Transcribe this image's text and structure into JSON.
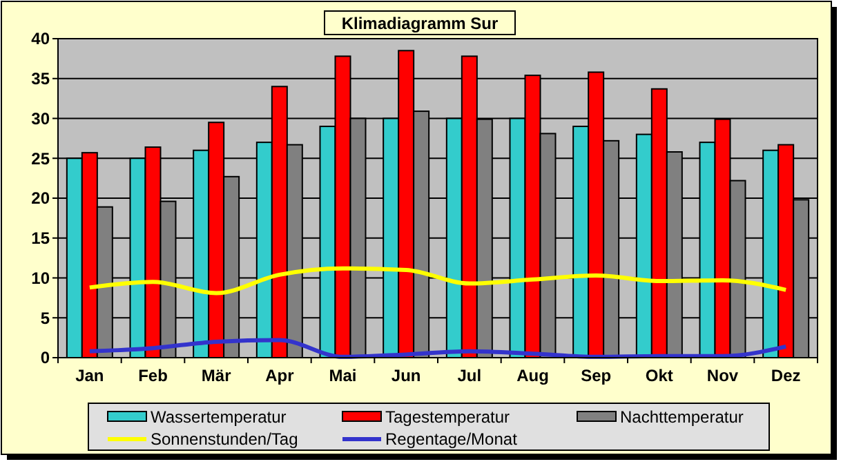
{
  "chart_data": {
    "type": "bar",
    "title": "Klimadiagramm Sur",
    "categories": [
      "Jan",
      "Feb",
      "Mär",
      "Apr",
      "Mai",
      "Jun",
      "Jul",
      "Aug",
      "Sep",
      "Okt",
      "Nov",
      "Dez"
    ],
    "series": [
      {
        "name": "Wassertemperatur",
        "color": "#33cccc",
        "values": [
          25,
          25,
          26,
          27,
          29,
          30,
          30,
          30,
          29,
          28,
          27,
          26
        ]
      },
      {
        "name": "Tagestemperatur",
        "color": "#ff0000",
        "values": [
          25.7,
          26.4,
          29.5,
          34,
          37.8,
          38.5,
          37.8,
          35.4,
          35.8,
          33.7,
          29.9,
          26.7
        ]
      },
      {
        "name": "Nachttemperatur",
        "color": "#808080",
        "values": [
          18.9,
          19.6,
          22.7,
          26.7,
          30,
          30.9,
          29.9,
          28.1,
          27.2,
          25.8,
          22.2,
          19.8
        ]
      },
      {
        "name": "Sonnenstunden/Tag",
        "type": "line",
        "color": "#ffff00",
        "values": [
          8.8,
          9.5,
          8.1,
          10.4,
          11.2,
          11,
          9.3,
          9.8,
          10.3,
          9.6,
          9.7,
          8.5
        ]
      },
      {
        "name": "Regentage/Monat",
        "type": "line",
        "color": "#3333cc",
        "values": [
          0.8,
          1.2,
          2,
          2.2,
          0.1,
          0.4,
          0.8,
          0.5,
          0.1,
          0.2,
          0.2,
          1.4
        ]
      }
    ],
    "ylim": [
      0,
      40
    ],
    "yticks": [
      0,
      5,
      10,
      15,
      20,
      25,
      30,
      35,
      40
    ],
    "grid": "y",
    "legend": "bottom",
    "marker": "none"
  }
}
